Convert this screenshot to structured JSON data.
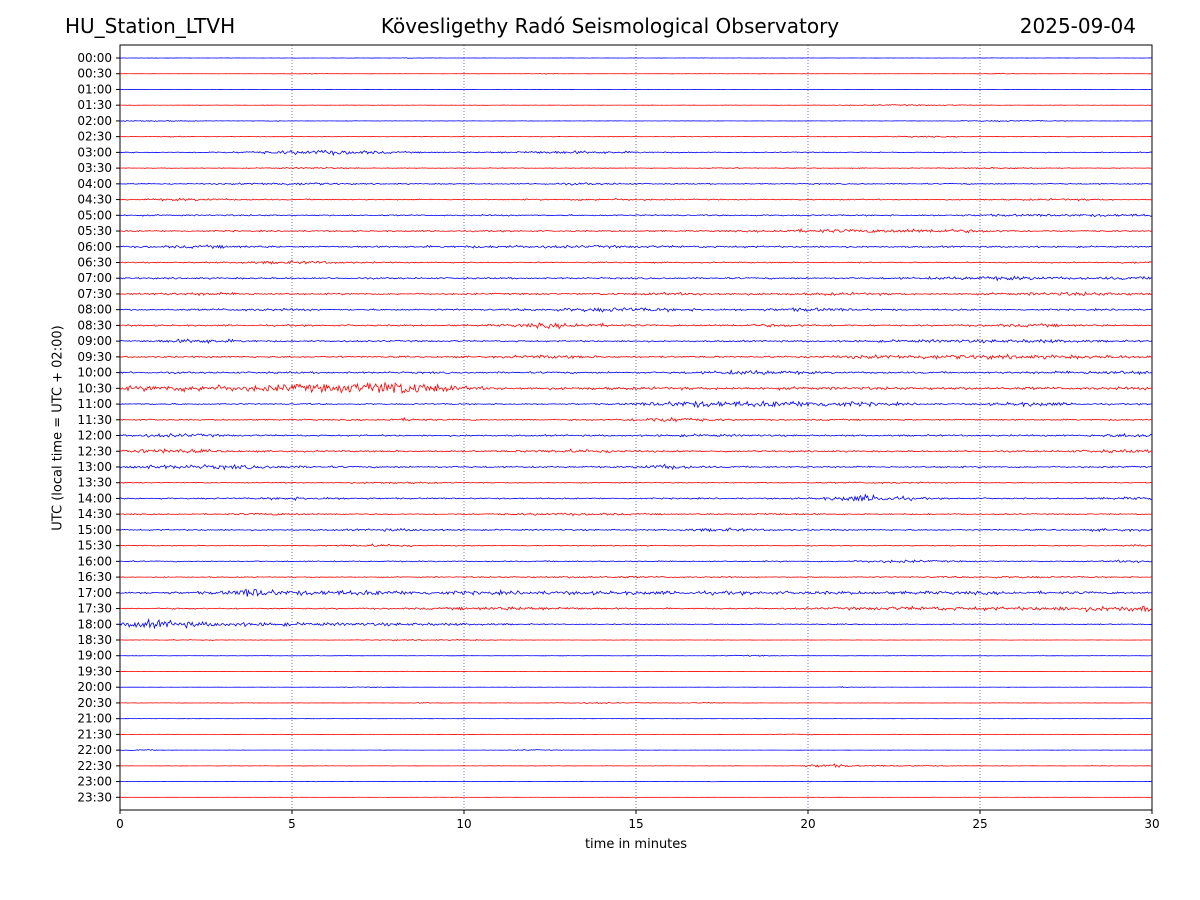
{
  "header": {
    "station": "HU_Station_LTVH",
    "observatory": "Kövesligethy Radó Seismological Observatory",
    "date": "2025-09-04"
  },
  "chart_data": {
    "type": "line",
    "title": "Kövesligethy Radó Seismological Observatory",
    "xlabel": "time in minutes",
    "ylabel": "UTC (local time = UTC + 02:00)",
    "xlim": [
      0,
      30
    ],
    "xticks": [
      0,
      5,
      10,
      15,
      20,
      25,
      30
    ],
    "vertical_gridlines": [
      5,
      10,
      15,
      20,
      25
    ],
    "colors": [
      "#0000ff",
      "#ff0000"
    ],
    "rows": [
      {
        "label": "00:00",
        "noise": 0.1,
        "events": [
          [
            8.5,
            0.3,
            0.2
          ]
        ]
      },
      {
        "label": "00:30",
        "noise": 0.1,
        "events": [
          [
            25.5,
            0.3,
            0.3
          ],
          [
            12.5,
            0.3,
            0.2
          ],
          [
            5.5,
            0.3,
            0.2
          ]
        ]
      },
      {
        "label": "01:00",
        "noise": 0.1,
        "events": []
      },
      {
        "label": "01:30",
        "noise": 0.15,
        "events": [
          [
            22.7,
            1.0,
            0.4
          ],
          [
            20.8,
            0.3,
            0.2
          ],
          [
            24.5,
            0.3,
            0.2
          ]
        ]
      },
      {
        "label": "02:00",
        "noise": 0.15,
        "events": [
          [
            0.7,
            1.0,
            0.4
          ],
          [
            25.8,
            1.0,
            0.5
          ],
          [
            4.6,
            0.2,
            0.3
          ]
        ]
      },
      {
        "label": "02:30",
        "noise": 0.2,
        "events": [
          [
            23.2,
            0.8,
            0.4
          ],
          [
            1.5,
            0.6,
            0.2
          ]
        ]
      },
      {
        "label": "03:00",
        "noise": 0.4,
        "events": [
          [
            5.5,
            1.5,
            1.2
          ],
          [
            13,
            1.5,
            1.0
          ],
          [
            6.5,
            1.0,
            0.6
          ]
        ]
      },
      {
        "label": "03:30",
        "noise": 0.3,
        "events": [
          [
            5.5,
            0.8,
            0.5
          ],
          [
            25.8,
            0.8,
            0.5
          ],
          [
            17.5,
            0.5,
            0.3
          ]
        ]
      },
      {
        "label": "04:00",
        "noise": 0.5,
        "events": [
          [
            5,
            1.0,
            0.8
          ],
          [
            13.5,
            1.0,
            0.5
          ]
        ]
      },
      {
        "label": "04:30",
        "noise": 0.5,
        "events": [
          [
            2,
            1.0,
            0.6
          ],
          [
            14,
            1.0,
            0.5
          ],
          [
            27.5,
            1.0,
            0.4
          ]
        ]
      },
      {
        "label": "05:00",
        "noise": 0.6,
        "events": [
          [
            29,
            1.5,
            0.6
          ],
          [
            26,
            1.0,
            0.4
          ]
        ]
      },
      {
        "label": "05:30",
        "noise": 0.6,
        "events": [
          [
            23.2,
            1.5,
            1.3
          ],
          [
            20,
            1.0,
            0.8
          ]
        ]
      },
      {
        "label": "06:00",
        "noise": 0.7,
        "events": [
          [
            2.5,
            1.0,
            0.7
          ],
          [
            13,
            3.0,
            0.5
          ]
        ]
      },
      {
        "label": "06:30",
        "noise": 0.5,
        "events": [
          [
            5,
            1.2,
            0.9
          ],
          [
            29.5,
            0.5,
            0.5
          ]
        ]
      },
      {
        "label": "07:00",
        "noise": 0.7,
        "events": [
          [
            25.5,
            1.5,
            1.0
          ],
          [
            29.5,
            1.0,
            0.6
          ]
        ]
      },
      {
        "label": "07:30",
        "noise": 0.7,
        "events": [
          [
            2.5,
            1.0,
            0.7
          ],
          [
            28,
            1.5,
            0.9
          ],
          [
            21,
            1.0,
            0.6
          ],
          [
            16.5,
            1.5,
            0.5
          ]
        ]
      },
      {
        "label": "08:00",
        "noise": 0.7,
        "events": [
          [
            14.5,
            1.5,
            1.3
          ],
          [
            20,
            1.0,
            0.9
          ],
          [
            4,
            1.0,
            0.5
          ]
        ]
      },
      {
        "label": "08:30",
        "noise": 0.7,
        "events": [
          [
            12.8,
            1.0,
            1.6
          ],
          [
            26.5,
            1.0,
            0.7
          ],
          [
            19,
            1.0,
            0.6
          ]
        ]
      },
      {
        "label": "09:00",
        "noise": 0.7,
        "events": [
          [
            2.3,
            0.8,
            1.3
          ],
          [
            27,
            1.0,
            0.8
          ],
          [
            24,
            1.5,
            0.7
          ]
        ]
      },
      {
        "label": "09:30",
        "noise": 0.7,
        "events": [
          [
            23.5,
            2.0,
            1.3
          ],
          [
            12.5,
            1.0,
            0.8
          ],
          [
            28,
            2.0,
            0.8
          ]
        ]
      },
      {
        "label": "10:00",
        "noise": 0.8,
        "events": [
          [
            18.5,
            1.0,
            1.3
          ],
          [
            29,
            1.5,
            0.9
          ]
        ]
      },
      {
        "label": "10:30",
        "noise": 1.2,
        "events": [
          [
            8,
            1.0,
            4.0
          ],
          [
            5,
            0.8,
            1.8
          ],
          [
            1.5,
            1.0,
            1.5
          ],
          [
            3,
            0.8,
            1.1
          ],
          [
            7,
            1.5,
            1.2
          ]
        ]
      },
      {
        "label": "11:00",
        "noise": 0.6,
        "events": [
          [
            16.5,
            1.0,
            1.8
          ],
          [
            20.3,
            1.5,
            1.8
          ],
          [
            26.5,
            0.8,
            1.4
          ],
          [
            18.5,
            1.5,
            0.8
          ]
        ]
      },
      {
        "label": "11:30",
        "noise": 0.6,
        "events": [
          [
            16,
            0.8,
            1.7
          ],
          [
            8.2,
            0.5,
            0.8
          ]
        ]
      },
      {
        "label": "12:00",
        "noise": 0.7,
        "events": [
          [
            1.5,
            1.0,
            0.9
          ],
          [
            29.5,
            0.8,
            1.1
          ],
          [
            17,
            1.0,
            0.5
          ]
        ]
      },
      {
        "label": "12:30",
        "noise": 0.7,
        "events": [
          [
            1.3,
            1.0,
            1.4
          ],
          [
            13.3,
            1.0,
            1.0
          ],
          [
            29,
            1.0,
            0.7
          ]
        ]
      },
      {
        "label": "13:00",
        "noise": 0.7,
        "events": [
          [
            3,
            1.5,
            1.2
          ],
          [
            15.9,
            0.5,
            1.6
          ],
          [
            0.5,
            0.8,
            0.8
          ]
        ]
      },
      {
        "label": "13:30",
        "noise": 0.4,
        "events": [
          [
            8,
            1.0,
            0.5
          ],
          [
            22,
            1.0,
            0.5
          ]
        ]
      },
      {
        "label": "14:00",
        "noise": 0.6,
        "events": [
          [
            21.8,
            0.8,
            2.6
          ],
          [
            5.3,
            0.8,
            0.9
          ],
          [
            29.5,
            0.8,
            0.6
          ]
        ]
      },
      {
        "label": "14:30",
        "noise": 0.5,
        "events": [
          [
            4.5,
            0.8,
            0.6
          ],
          [
            13,
            1.5,
            0.6
          ],
          [
            19,
            1.0,
            0.5
          ]
        ]
      },
      {
        "label": "15:00",
        "noise": 0.6,
        "events": [
          [
            17.5,
            0.8,
            0.9
          ],
          [
            8,
            0.8,
            0.6
          ],
          [
            29,
            0.8,
            0.6
          ]
        ]
      },
      {
        "label": "15:30",
        "noise": 0.4,
        "events": [
          [
            7.5,
            0.8,
            0.9
          ],
          [
            29.5,
            0.5,
            0.5
          ]
        ]
      },
      {
        "label": "16:00",
        "noise": 0.5,
        "events": [
          [
            22.5,
            1.0,
            0.8
          ],
          [
            29.5,
            0.5,
            0.8
          ]
        ]
      },
      {
        "label": "16:30",
        "noise": 0.4,
        "events": [
          [
            14,
            2.0,
            0.5
          ],
          [
            26,
            2.0,
            0.5
          ]
        ]
      },
      {
        "label": "17:00",
        "noise": 0.8,
        "events": [
          [
            3.9,
            0.4,
            2.5
          ],
          [
            6,
            2.5,
            1.3
          ],
          [
            14,
            4.0,
            0.8
          ],
          [
            24,
            4.0,
            0.6
          ]
        ]
      },
      {
        "label": "17:30",
        "noise": 0.6,
        "events": [
          [
            28.5,
            1.5,
            1.6
          ],
          [
            11.5,
            1.5,
            1.1
          ],
          [
            23.5,
            2.0,
            1.2
          ],
          [
            29.8,
            0.5,
            1.3
          ]
        ]
      },
      {
        "label": "18:00",
        "noise": 0.4,
        "events": [
          [
            1,
            0.8,
            2.8
          ],
          [
            3,
            1.5,
            1.0
          ],
          [
            6,
            2.0,
            0.9
          ],
          [
            9.5,
            1.5,
            0.6
          ]
        ]
      },
      {
        "label": "18:30",
        "noise": 0.15,
        "events": [
          [
            9,
            1.5,
            0.4
          ],
          [
            2,
            1.0,
            0.3
          ]
        ]
      },
      {
        "label": "19:00",
        "noise": 0.15,
        "events": [
          [
            18.3,
            0.5,
            0.4
          ]
        ]
      },
      {
        "label": "19:30",
        "noise": 0.1,
        "events": [
          [
            8,
            0.5,
            0.3
          ]
        ]
      },
      {
        "label": "20:00",
        "noise": 0.1,
        "events": [
          [
            21.2,
            0.3,
            0.4
          ],
          [
            7,
            0.5,
            0.3
          ]
        ]
      },
      {
        "label": "20:30",
        "noise": 0.15,
        "events": [
          [
            13.8,
            0.8,
            0.5
          ],
          [
            9,
            0.5,
            0.3
          ],
          [
            17,
            0.5,
            0.3
          ]
        ]
      },
      {
        "label": "21:00",
        "noise": 0.1,
        "events": []
      },
      {
        "label": "21:30",
        "noise": 0.1,
        "events": [
          [
            19.7,
            0.5,
            0.3
          ]
        ]
      },
      {
        "label": "22:00",
        "noise": 0.1,
        "events": [
          [
            0.6,
            0.4,
            0.5
          ],
          [
            12,
            0.5,
            0.4
          ]
        ]
      },
      {
        "label": "22:30",
        "noise": 0.15,
        "events": [
          [
            20.5,
            0.4,
            1.4
          ],
          [
            22,
            1.5,
            0.4
          ]
        ]
      },
      {
        "label": "23:00",
        "noise": 0.1,
        "events": [
          [
            17,
            0.3,
            0.2
          ]
        ]
      },
      {
        "label": "23:30",
        "noise": 0.1,
        "events": []
      }
    ]
  }
}
